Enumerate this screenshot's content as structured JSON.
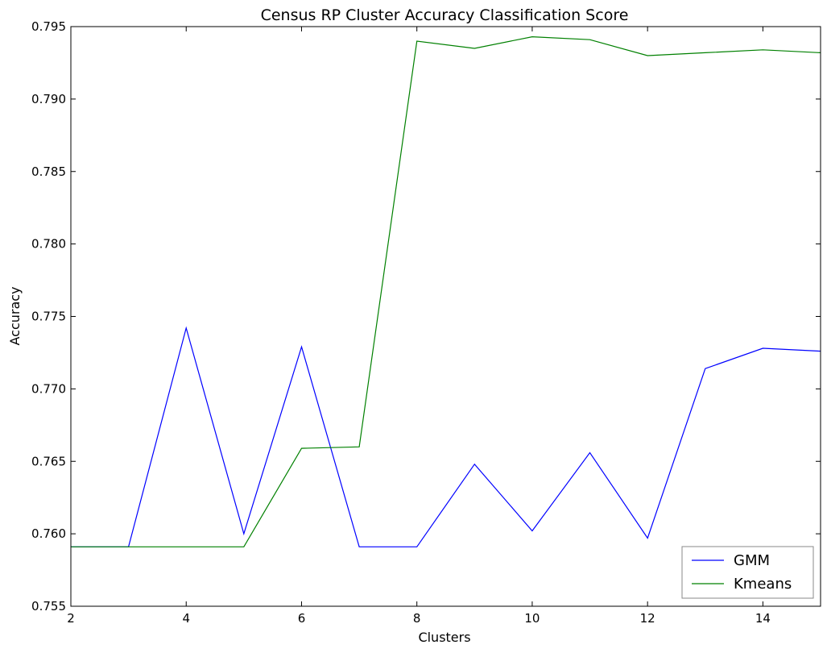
{
  "chart_data": {
    "type": "line",
    "title": "Census RP Cluster Accuracy Classification Score",
    "xlabel": "Clusters",
    "ylabel": "Accuracy",
    "xlim": [
      2,
      15
    ],
    "ylim": [
      0.755,
      0.795
    ],
    "xticks": [
      2,
      4,
      6,
      8,
      10,
      12,
      14
    ],
    "xtick_labels": [
      "2",
      "4",
      "6",
      "8",
      "10",
      "12",
      "14"
    ],
    "yticks": [
      0.755,
      0.76,
      0.765,
      0.77,
      0.775,
      0.78,
      0.785,
      0.79,
      0.795
    ],
    "ytick_labels": [
      "0.755",
      "0.760",
      "0.765",
      "0.770",
      "0.775",
      "0.780",
      "0.785",
      "0.790",
      "0.795"
    ],
    "x": [
      2,
      3,
      4,
      5,
      6,
      7,
      8,
      9,
      10,
      11,
      12,
      13,
      14,
      15
    ],
    "series": [
      {
        "name": "GMM",
        "color": "#0000ff",
        "values": [
          0.7591,
          0.7591,
          0.7742,
          0.76,
          0.7729,
          0.7591,
          0.7591,
          0.7648,
          0.7602,
          0.7656,
          0.7597,
          0.7714,
          0.7728,
          0.7726
        ]
      },
      {
        "name": "Kmeans",
        "color": "#008000",
        "values": [
          0.7591,
          0.7591,
          0.7591,
          0.7591,
          0.7659,
          0.766,
          0.794,
          0.7935,
          0.7943,
          0.7941,
          0.793,
          0.7932,
          0.7934,
          0.7932
        ]
      }
    ],
    "grid": false,
    "legend_position": "lower-right"
  }
}
